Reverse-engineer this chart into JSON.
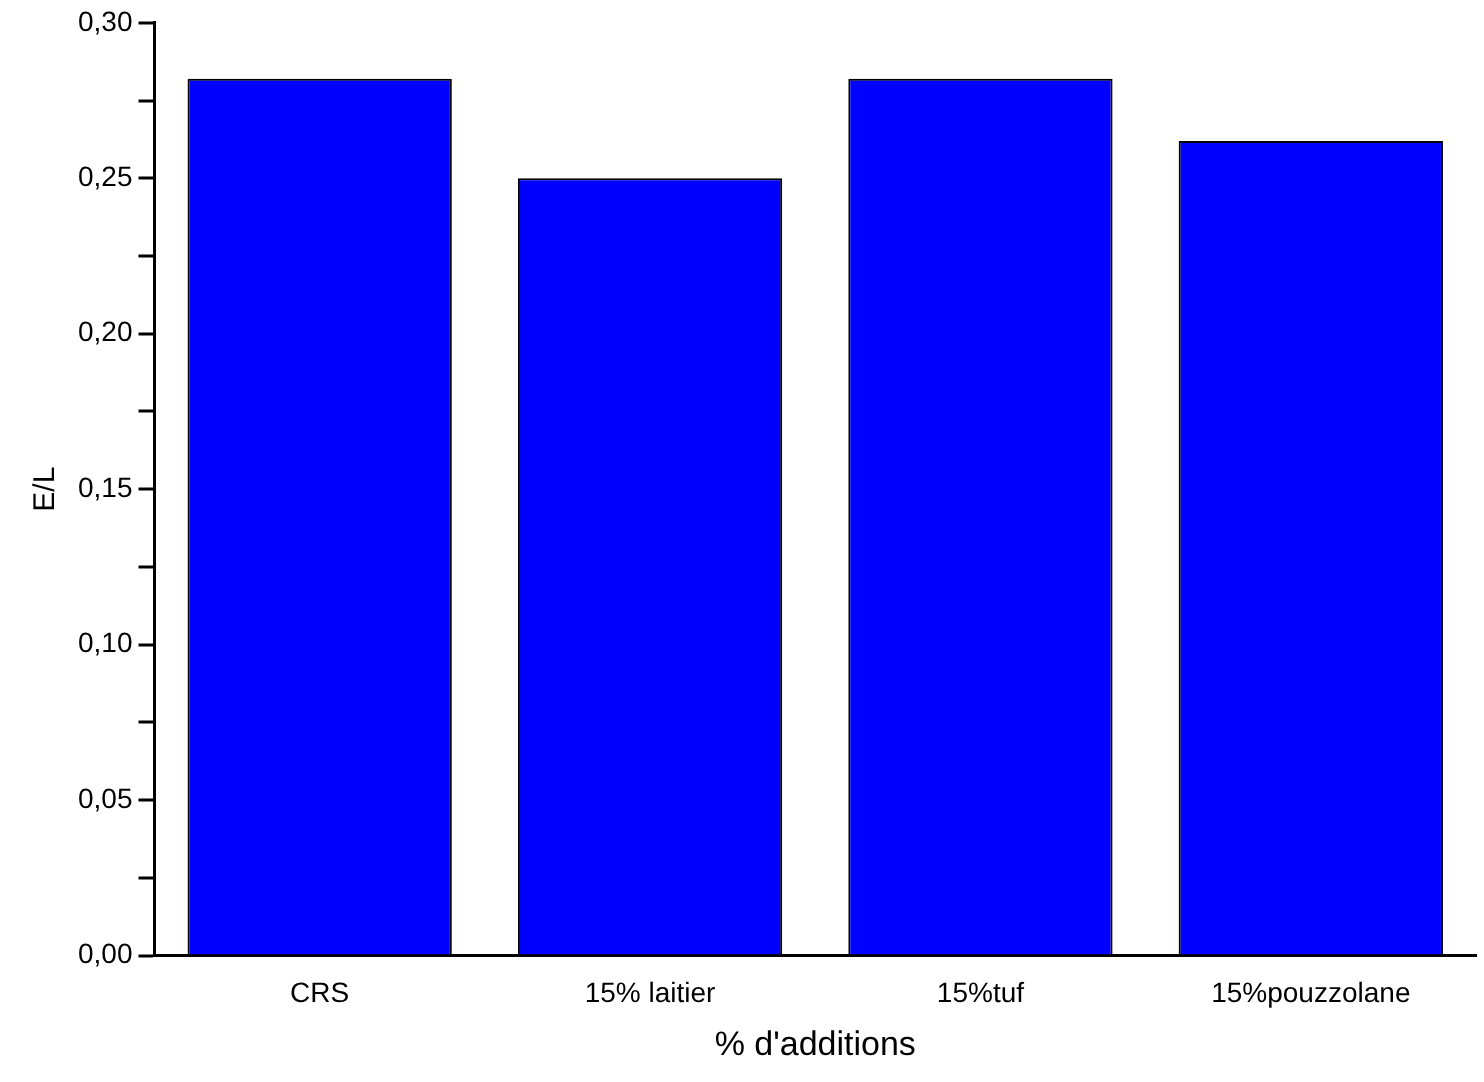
{
  "chart_data": {
    "type": "bar",
    "xlabel": "% d'additions",
    "ylabel": "E/L",
    "categories": [
      "CRS",
      "15% laitier",
      "15%tuf",
      "15%pouzzolane"
    ],
    "values": [
      0.282,
      0.25,
      0.282,
      0.262
    ],
    "color": "#0000ff",
    "ylim": [
      0,
      0.3
    ],
    "yticks": [
      {
        "value": 0,
        "label": "0,00"
      },
      {
        "value": 0.025,
        "label": null
      },
      {
        "value": 0.05,
        "label": "0,05"
      },
      {
        "value": 0.075,
        "label": null
      },
      {
        "value": 0.1,
        "label": "0,10"
      },
      {
        "value": 0.125,
        "label": null
      },
      {
        "value": 0.15,
        "label": "0,15"
      },
      {
        "value": 0.175,
        "label": null
      },
      {
        "value": 0.2,
        "label": "0,20"
      },
      {
        "value": 0.225,
        "label": null
      },
      {
        "value": 0.25,
        "label": "0,25"
      },
      {
        "value": 0.275,
        "label": null
      },
      {
        "value": 0.3,
        "label": "0,30"
      }
    ],
    "grid": false,
    "legend": false
  }
}
